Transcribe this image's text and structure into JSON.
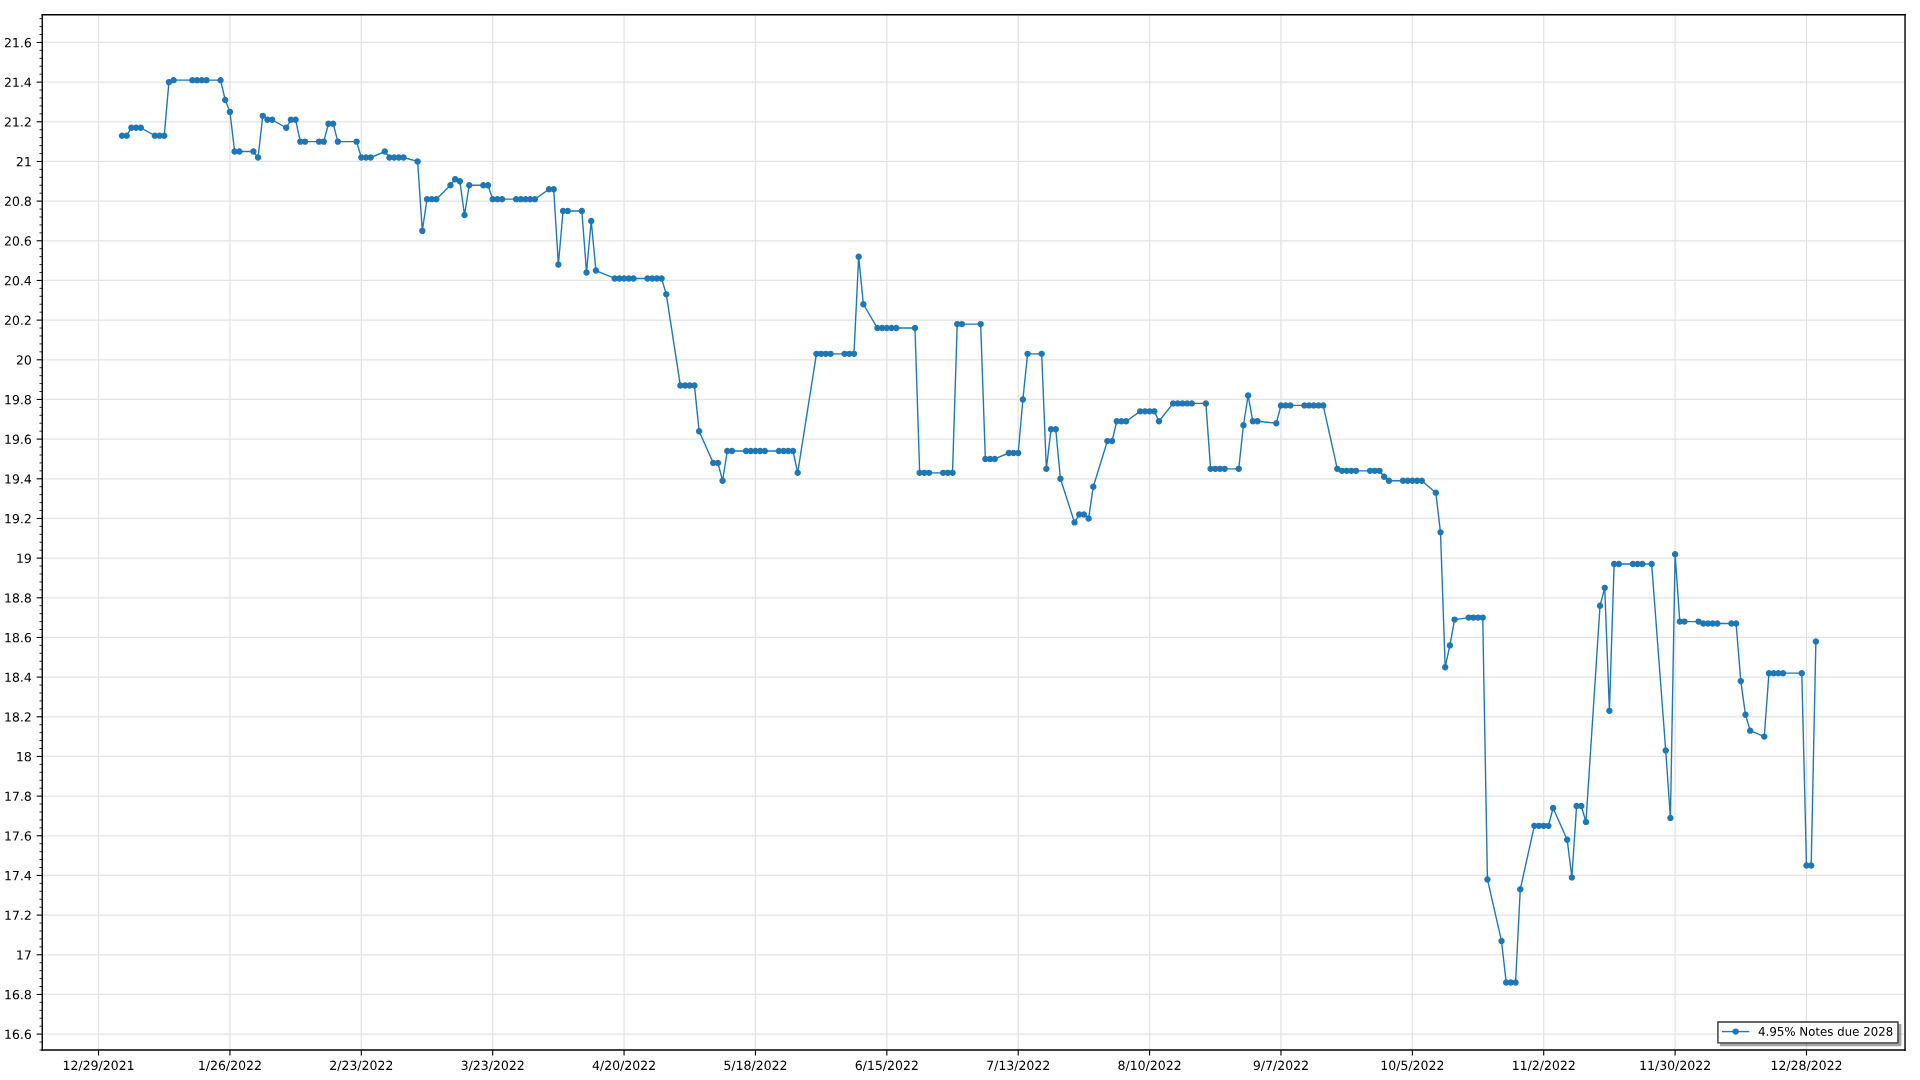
{
  "chart_data": {
    "type": "line",
    "x": [
      "2022-01-03",
      "2022-01-04",
      "2022-01-05",
      "2022-01-06",
      "2022-01-07",
      "2022-01-10",
      "2022-01-11",
      "2022-01-12",
      "2022-01-13",
      "2022-01-14",
      "2022-01-18",
      "2022-01-19",
      "2022-01-20",
      "2022-01-21",
      "2022-01-24",
      "2022-01-25",
      "2022-01-26",
      "2022-01-27",
      "2022-01-28",
      "2022-01-31",
      "2022-02-01",
      "2022-02-02",
      "2022-02-03",
      "2022-02-04",
      "2022-02-07",
      "2022-02-08",
      "2022-02-09",
      "2022-02-10",
      "2022-02-11",
      "2022-02-14",
      "2022-02-15",
      "2022-02-16",
      "2022-02-17",
      "2022-02-18",
      "2022-02-22",
      "2022-02-23",
      "2022-02-24",
      "2022-02-25",
      "2022-02-28",
      "2022-03-01",
      "2022-03-02",
      "2022-03-03",
      "2022-03-04",
      "2022-03-07",
      "2022-03-08",
      "2022-03-09",
      "2022-03-10",
      "2022-03-11",
      "2022-03-14",
      "2022-03-15",
      "2022-03-16",
      "2022-03-17",
      "2022-03-18",
      "2022-03-21",
      "2022-03-22",
      "2022-03-23",
      "2022-03-24",
      "2022-03-25",
      "2022-03-28",
      "2022-03-29",
      "2022-03-30",
      "2022-03-31",
      "2022-04-01",
      "2022-04-04",
      "2022-04-05",
      "2022-04-06",
      "2022-04-07",
      "2022-04-08",
      "2022-04-11",
      "2022-04-12",
      "2022-04-13",
      "2022-04-14",
      "2022-04-18",
      "2022-04-19",
      "2022-04-20",
      "2022-04-21",
      "2022-04-22",
      "2022-04-25",
      "2022-04-26",
      "2022-04-27",
      "2022-04-28",
      "2022-04-29",
      "2022-05-02",
      "2022-05-03",
      "2022-05-04",
      "2022-05-05",
      "2022-05-06",
      "2022-05-09",
      "2022-05-10",
      "2022-05-11",
      "2022-05-12",
      "2022-05-13",
      "2022-05-16",
      "2022-05-17",
      "2022-05-18",
      "2022-05-19",
      "2022-05-20",
      "2022-05-23",
      "2022-05-24",
      "2022-05-25",
      "2022-05-26",
      "2022-05-27",
      "2022-05-31",
      "2022-06-01",
      "2022-06-02",
      "2022-06-03",
      "2022-06-06",
      "2022-06-07",
      "2022-06-08",
      "2022-06-09",
      "2022-06-10",
      "2022-06-13",
      "2022-06-14",
      "2022-06-15",
      "2022-06-16",
      "2022-06-17",
      "2022-06-21",
      "2022-06-22",
      "2022-06-23",
      "2022-06-24",
      "2022-06-27",
      "2022-06-28",
      "2022-06-29",
      "2022-06-30",
      "2022-07-01",
      "2022-07-05",
      "2022-07-06",
      "2022-07-07",
      "2022-07-08",
      "2022-07-11",
      "2022-07-12",
      "2022-07-13",
      "2022-07-14",
      "2022-07-15",
      "2022-07-18",
      "2022-07-19",
      "2022-07-20",
      "2022-07-21",
      "2022-07-22",
      "2022-07-25",
      "2022-07-26",
      "2022-07-27",
      "2022-07-28",
      "2022-07-29",
      "2022-08-01",
      "2022-08-02",
      "2022-08-03",
      "2022-08-04",
      "2022-08-05",
      "2022-08-08",
      "2022-08-09",
      "2022-08-10",
      "2022-08-11",
      "2022-08-12",
      "2022-08-15",
      "2022-08-16",
      "2022-08-17",
      "2022-08-18",
      "2022-08-19",
      "2022-08-22",
      "2022-08-23",
      "2022-08-24",
      "2022-08-25",
      "2022-08-26",
      "2022-08-29",
      "2022-08-30",
      "2022-08-31",
      "2022-09-01",
      "2022-09-02",
      "2022-09-06",
      "2022-09-07",
      "2022-09-08",
      "2022-09-09",
      "2022-09-12",
      "2022-09-13",
      "2022-09-14",
      "2022-09-15",
      "2022-09-16",
      "2022-09-19",
      "2022-09-20",
      "2022-09-21",
      "2022-09-22",
      "2022-09-23",
      "2022-09-26",
      "2022-09-27",
      "2022-09-28",
      "2022-09-29",
      "2022-09-30",
      "2022-10-03",
      "2022-10-04",
      "2022-10-05",
      "2022-10-06",
      "2022-10-07",
      "2022-10-10",
      "2022-10-11",
      "2022-10-12",
      "2022-10-13",
      "2022-10-14",
      "2022-10-17",
      "2022-10-18",
      "2022-10-19",
      "2022-10-20",
      "2022-10-21",
      "2022-10-24",
      "2022-10-25",
      "2022-10-26",
      "2022-10-27",
      "2022-10-28",
      "2022-10-31",
      "2022-11-01",
      "2022-11-02",
      "2022-11-03",
      "2022-11-04",
      "2022-11-07",
      "2022-11-08",
      "2022-11-09",
      "2022-11-10",
      "2022-11-11",
      "2022-11-14",
      "2022-11-15",
      "2022-11-16",
      "2022-11-17",
      "2022-11-18",
      "2022-11-21",
      "2022-11-22",
      "2022-11-23",
      "2022-11-25",
      "2022-11-28",
      "2022-11-29",
      "2022-11-30",
      "2022-12-01",
      "2022-12-02",
      "2022-12-05",
      "2022-12-06",
      "2022-12-07",
      "2022-12-08",
      "2022-12-09",
      "2022-12-12",
      "2022-12-13",
      "2022-12-14",
      "2022-12-15",
      "2022-12-16",
      "2022-12-19",
      "2022-12-20",
      "2022-12-21",
      "2022-12-22",
      "2022-12-23",
      "2022-12-27",
      "2022-12-28",
      "2022-12-29",
      "2022-12-30"
    ],
    "series": [
      {
        "name": "4.95% Notes due 2028",
        "color": "#1f77b4",
        "values": [
          21.13,
          21.13,
          21.17,
          21.17,
          21.17,
          21.13,
          21.13,
          21.13,
          21.4,
          21.41,
          21.41,
          21.41,
          21.41,
          21.41,
          21.41,
          21.31,
          21.25,
          21.05,
          21.05,
          21.05,
          21.02,
          21.23,
          21.21,
          21.21,
          21.17,
          21.21,
          21.21,
          21.1,
          21.1,
          21.1,
          21.1,
          21.19,
          21.19,
          21.1,
          21.1,
          21.02,
          21.02,
          21.02,
          21.05,
          21.02,
          21.02,
          21.02,
          21.02,
          21.0,
          20.65,
          20.81,
          20.81,
          20.81,
          20.88,
          20.91,
          20.9,
          20.73,
          20.88,
          20.88,
          20.88,
          20.81,
          20.81,
          20.81,
          20.81,
          20.81,
          20.81,
          20.81,
          20.81,
          20.86,
          20.86,
          20.48,
          20.75,
          20.75,
          20.75,
          20.44,
          20.7,
          20.45,
          20.41,
          20.41,
          20.41,
          20.41,
          20.41,
          20.41,
          20.41,
          20.41,
          20.41,
          20.33,
          19.87,
          19.87,
          19.87,
          19.87,
          19.64,
          19.48,
          19.48,
          19.39,
          19.54,
          19.54,
          19.54,
          19.54,
          19.54,
          19.54,
          19.54,
          19.54,
          19.54,
          19.54,
          19.54,
          19.43,
          20.03,
          20.03,
          20.03,
          20.03,
          20.03,
          20.03,
          20.03,
          20.52,
          20.28,
          20.16,
          20.16,
          20.16,
          20.16,
          20.16,
          20.16,
          19.43,
          19.43,
          19.43,
          19.43,
          19.43,
          19.43,
          20.18,
          20.18,
          20.18,
          19.5,
          19.5,
          19.5,
          19.53,
          19.53,
          19.53,
          19.8,
          20.03,
          20.03,
          19.45,
          19.65,
          19.65,
          19.4,
          19.18,
          19.22,
          19.22,
          19.2,
          19.36,
          19.59,
          19.59,
          19.69,
          19.69,
          19.69,
          19.74,
          19.74,
          19.74,
          19.74,
          19.69,
          19.78,
          19.78,
          19.78,
          19.78,
          19.78,
          19.78,
          19.45,
          19.45,
          19.45,
          19.45,
          19.45,
          19.67,
          19.82,
          19.69,
          19.69,
          19.68,
          19.77,
          19.77,
          19.77,
          19.77,
          19.77,
          19.77,
          19.77,
          19.77,
          19.45,
          19.44,
          19.44,
          19.44,
          19.44,
          19.44,
          19.44,
          19.44,
          19.41,
          19.39,
          19.39,
          19.39,
          19.39,
          19.39,
          19.39,
          19.33,
          19.13,
          18.45,
          18.56,
          18.69,
          18.7,
          18.7,
          18.7,
          18.7,
          17.38,
          17.07,
          16.86,
          16.86,
          16.86,
          17.33,
          17.65,
          17.65,
          17.65,
          17.65,
          17.74,
          17.58,
          17.39,
          17.75,
          17.75,
          17.67,
          18.76,
          18.85,
          18.23,
          18.97,
          18.97,
          18.97,
          18.97,
          18.97,
          18.97,
          18.03,
          17.69,
          19.02,
          18.68,
          18.68,
          18.68,
          18.67,
          18.67,
          18.67,
          18.67,
          18.67,
          18.67,
          18.38,
          18.21,
          18.13,
          18.1,
          18.42,
          18.42,
          18.42,
          18.42,
          18.42,
          17.45,
          17.45,
          18.58
        ]
      }
    ],
    "xlim": [
      "2021-12-17",
      "2023-01-18"
    ],
    "ylim": [
      16.52,
      21.74
    ],
    "xticks": [
      {
        "value": "2021-12-29",
        "label": "12/29/2021"
      },
      {
        "value": "2022-01-26",
        "label": "1/26/2022"
      },
      {
        "value": "2022-02-23",
        "label": "2/23/2022"
      },
      {
        "value": "2022-03-23",
        "label": "3/23/2022"
      },
      {
        "value": "2022-04-20",
        "label": "4/20/2022"
      },
      {
        "value": "2022-05-18",
        "label": "5/18/2022"
      },
      {
        "value": "2022-06-15",
        "label": "6/15/2022"
      },
      {
        "value": "2022-07-13",
        "label": "7/13/2022"
      },
      {
        "value": "2022-08-10",
        "label": "8/10/2022"
      },
      {
        "value": "2022-09-07",
        "label": "9/7/2022"
      },
      {
        "value": "2022-10-05",
        "label": "10/5/2022"
      },
      {
        "value": "2022-11-02",
        "label": "11/2/2022"
      },
      {
        "value": "2022-11-30",
        "label": "11/30/2022"
      },
      {
        "value": "2022-12-28",
        "label": "12/28/2022"
      }
    ],
    "yticks": [
      16.6,
      16.8,
      17,
      17.2,
      17.4,
      17.6,
      17.8,
      18,
      18.2,
      18.4,
      18.6,
      18.8,
      19,
      19.2,
      19.4,
      19.6,
      19.8,
      20,
      20.2,
      20.4,
      20.6,
      20.8,
      21,
      21.2,
      21.4,
      21.6
    ],
    "grid": true,
    "legend": "bottom right",
    "marker": "circle",
    "line_style": "solid"
  }
}
